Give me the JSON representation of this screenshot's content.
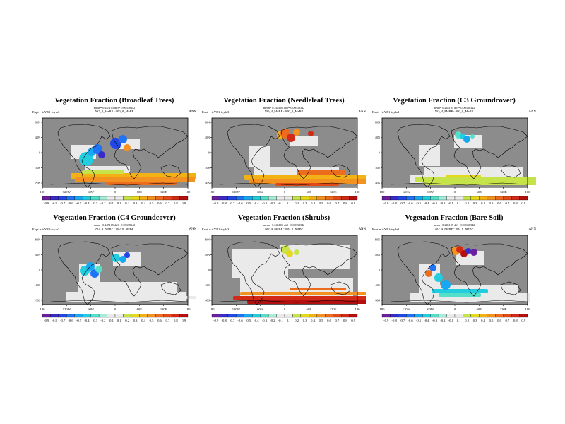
{
  "figure": {
    "common": {
      "expt_label": "Expt = tcYE1-tcyfa3",
      "season": "ANN",
      "x_ticks": [
        "180",
        "120W",
        "60W",
        "0",
        "60E",
        "120E",
        "180"
      ],
      "y_ticks": [
        "80N",
        "40N",
        "0",
        "40S",
        "80S"
      ],
      "colorbar_values": [
        "-0.9",
        "-0.8",
        "-0.7",
        "-0.6",
        "-0.5",
        "-0.4",
        "-0.3",
        "-0.2",
        "-0.1",
        "0.1",
        "0.2",
        "0.3",
        "0.4",
        "0.5",
        "0.6",
        "0.7",
        "0.8",
        "0.9"
      ],
      "colorbar_colors": [
        "#6a1ea0",
        "#3a2bc8",
        "#2147e6",
        "#1f74f5",
        "#18a8f0",
        "#23cde0",
        "#54e0c8",
        "#a6ecd9",
        "#eaeaea",
        "#eaeaea",
        "#c7e34a",
        "#e6d81a",
        "#f2b215",
        "#f39220",
        "#ed6d1f",
        "#e34a1a",
        "#d12a16",
        "#b51010"
      ],
      "color_land": "#8c8c8c",
      "color_neutral": "#eaeaea"
    },
    "panels": [
      {
        "title": "Vegetation Fraction (Broadleaf Trees)",
        "stats": "mean= 0.245105 diff= 0.00338342",
        "subtitle": "NO_4_MeBP - 000_0_MeBP"
      },
      {
        "title": "Vegetation Fraction (Needleleaf Trees)",
        "stats": "mean= 0.245105 diff= 0.00338342",
        "subtitle": "NO_4_MeBP - 000_0_MeBP"
      },
      {
        "title": "Vegetation Fraction (C3 Groundcover)",
        "stats": "mean= 0.245105 diff= 0.00338342",
        "subtitle": "NO_4_MeBP - 000_0_MeBP"
      },
      {
        "title": "Vegetation Fraction (C4 Groundcover)",
        "stats": "mean= 0.245105 diff= 0.00338342",
        "subtitle": "NO_4_MeBP - 000_0_MeBP"
      },
      {
        "title": "Vegetation Fraction (Shrubs)",
        "stats": "mean= 0.245105 diff= 0.00338342",
        "subtitle": "NO_4_MeBP - 000_0_MeBP"
      },
      {
        "title": "Vegetation Fraction (Bare Soil)",
        "stats": "mean= 0.245105 diff= 0.00338342",
        "subtitle": "NO_4_MeBP - 000_0_MeBP"
      }
    ]
  }
}
